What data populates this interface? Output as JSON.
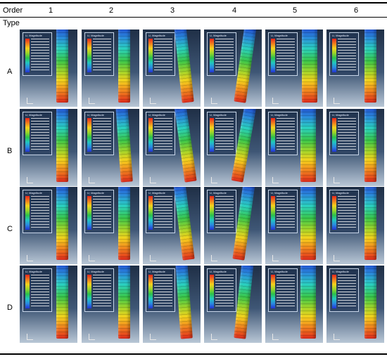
{
  "header": {
    "order_label": "Order",
    "type_label": "Type",
    "columns": [
      "1",
      "2",
      "3",
      "4",
      "5",
      "6"
    ]
  },
  "rows": [
    {
      "label": "A"
    },
    {
      "label": "B"
    },
    {
      "label": "C"
    },
    {
      "label": "D"
    }
  ],
  "legend_title": "U, Magnitude",
  "legend_colors": [
    "#e8261c",
    "#f07a1e",
    "#f4d21d",
    "#9ad42a",
    "#2cc24b",
    "#22c6bf",
    "#2a8ae0",
    "#2333d3"
  ]
}
